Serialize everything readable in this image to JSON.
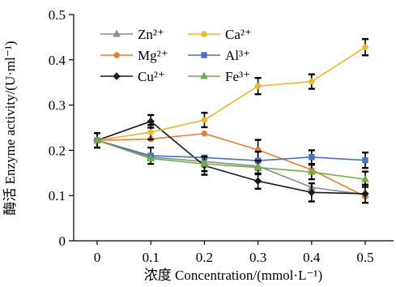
{
  "chart_data": {
    "type": "line",
    "xlabel": "浓度 Concentration/(mmol·L⁻¹)",
    "ylabel": "酶活 Enzyme activity/(U·ml⁻¹)",
    "x": [
      0,
      0.1,
      0.2,
      0.3,
      0.4,
      0.5
    ],
    "x_tick_labels": [
      "0",
      "0.1",
      "0.2",
      "0.3",
      "0.4",
      "0.5"
    ],
    "ylim": [
      0,
      0.5
    ],
    "y_ticks": [
      0,
      0.1,
      0.2,
      0.3,
      0.4,
      0.5
    ],
    "y_tick_labels": [
      "0",
      "0.1",
      "0.2",
      "0.3",
      "0.4",
      "0.5"
    ],
    "grid": false,
    "legend_placement": "top-center",
    "series": [
      {
        "name": "Zn²⁺",
        "color": "#8c8c8c",
        "marker": "triangle",
        "values": [
          0.222,
          0.185,
          0.175,
          0.165,
          0.118,
          0.102
        ],
        "errors": [
          0,
          0,
          0,
          0,
          0,
          0
        ]
      },
      {
        "name": "Mg²⁺",
        "color": "#ed7d31",
        "marker": "circle",
        "values": [
          0.222,
          0.225,
          0.237,
          0.201,
          0.157,
          0.098
        ],
        "errors": [
          0,
          0,
          0,
          0.022,
          0,
          0
        ]
      },
      {
        "name": "Cu²⁺",
        "color": "#1a1a1a",
        "marker": "diamond",
        "values": [
          0.222,
          0.264,
          0.166,
          0.132,
          0.107,
          0.104
        ],
        "errors": [
          0.016,
          0.014,
          0.02,
          0.017,
          0.02,
          0.02
        ]
      },
      {
        "name": "Ca²⁺",
        "color": "#f2b62b",
        "marker": "circle",
        "values": [
          0.222,
          0.24,
          0.267,
          0.342,
          0.352,
          0.428
        ],
        "errors": [
          0,
          0.016,
          0.016,
          0.018,
          0.016,
          0.018
        ]
      },
      {
        "name": "Al³⁺",
        "color": "#4a70c2",
        "marker": "square",
        "values": [
          0.222,
          0.188,
          0.184,
          0.177,
          0.185,
          0.178
        ],
        "errors": [
          0,
          0.018,
          0,
          0.02,
          0.015,
          0.017
        ]
      },
      {
        "name": "Fe³⁺",
        "color": "#70ad47",
        "marker": "triangle",
        "values": [
          0.222,
          0.182,
          0.17,
          0.162,
          0.152,
          0.136
        ],
        "errors": [
          0.016,
          0,
          0.016,
          0.015,
          0.016,
          0.017
        ]
      }
    ]
  }
}
